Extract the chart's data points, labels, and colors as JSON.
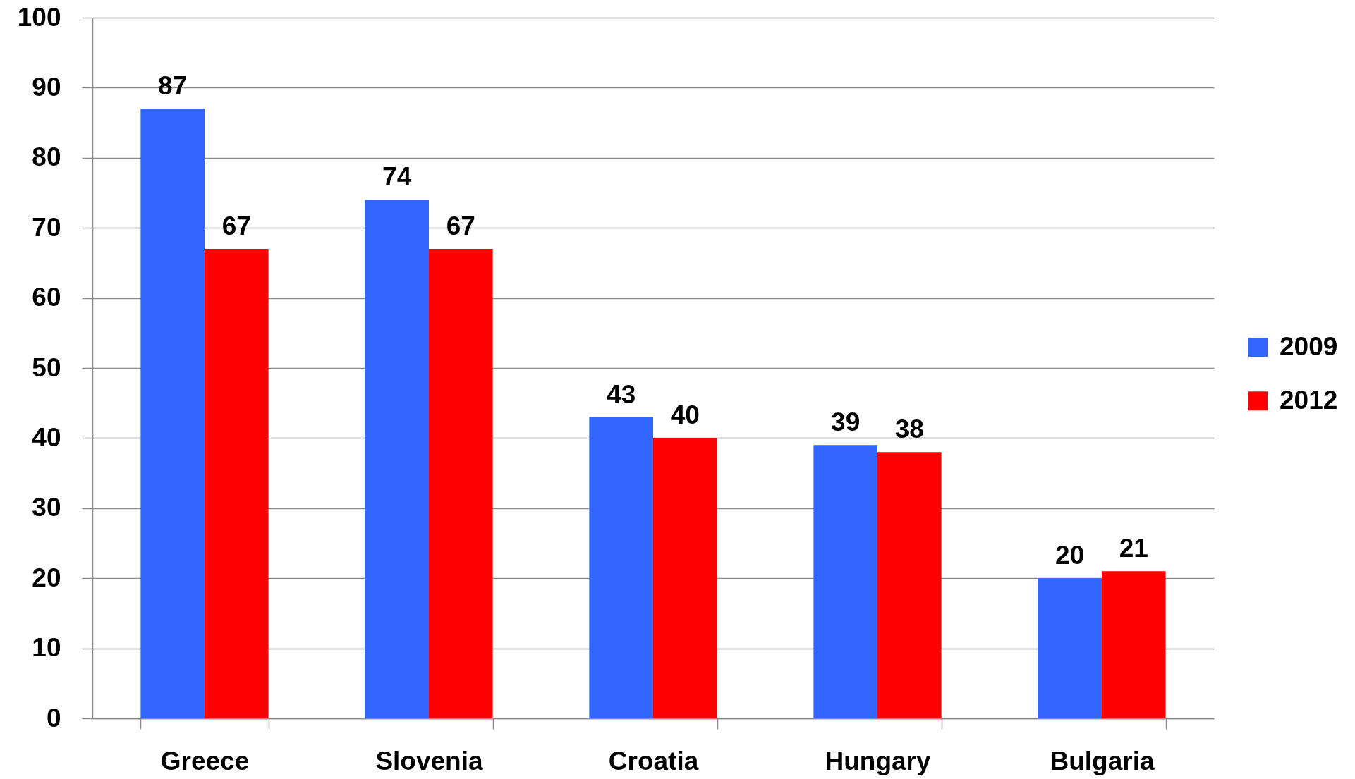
{
  "chart_data": {
    "type": "bar",
    "categories": [
      "Greece",
      "Slovenia",
      "Croatia",
      "Hungary",
      "Bulgaria"
    ],
    "series": [
      {
        "name": "2009",
        "color": "#3366ff",
        "values": [
          87,
          74,
          43,
          39,
          20
        ]
      },
      {
        "name": "2012",
        "color": "#ff0000",
        "values": [
          67,
          67,
          40,
          38,
          21
        ]
      }
    ],
    "ylim": [
      0,
      100
    ],
    "yticks": [
      0,
      10,
      20,
      30,
      40,
      50,
      60,
      70,
      80,
      90,
      100
    ],
    "grid": "y",
    "legend": "right",
    "data_labels": true
  }
}
